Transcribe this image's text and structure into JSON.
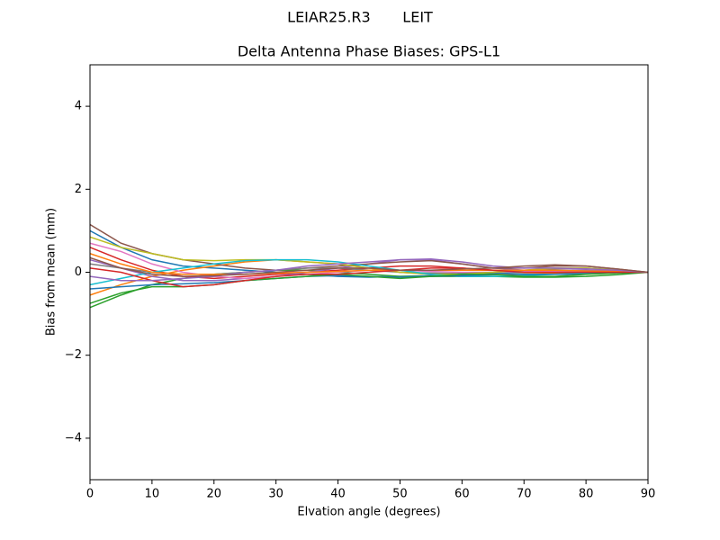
{
  "chart_data": {
    "type": "line",
    "suptitle": "LEIAR25.R3       LEIT",
    "title": "Delta Antenna Phase Biases: GPS-L1",
    "xlabel": "Elvation angle (degrees)",
    "ylabel": "Bias from mean (mm)",
    "xlim": [
      0,
      90
    ],
    "xticks": [
      0,
      10,
      20,
      30,
      40,
      50,
      60,
      70,
      80,
      90
    ],
    "ylim": [
      -5,
      5
    ],
    "yticks": [
      {
        "value": -4,
        "label": "−4"
      },
      {
        "value": -2,
        "label": "−2"
      },
      0,
      2,
      4
    ],
    "grid": false,
    "x": [
      0,
      5,
      10,
      15,
      20,
      25,
      30,
      35,
      40,
      45,
      50,
      55,
      60,
      65,
      70,
      75,
      80,
      85,
      90
    ],
    "series": [
      {
        "color": "#1f77b4",
        "values": [
          1.0,
          0.6,
          0.3,
          0.15,
          0.1,
          0.05,
          0.0,
          -0.05,
          -0.1,
          -0.12,
          -0.1,
          -0.08,
          -0.05,
          -0.03,
          0.0,
          0.02,
          0.03,
          0.02,
          0
        ]
      },
      {
        "color": "#ff7f0e",
        "values": [
          -0.55,
          -0.3,
          -0.1,
          0.05,
          0.15,
          0.25,
          0.3,
          0.25,
          0.2,
          0.1,
          0.0,
          -0.05,
          -0.08,
          -0.06,
          -0.04,
          -0.02,
          0.0,
          0.01,
          0
        ]
      },
      {
        "color": "#2ca02c",
        "values": [
          -0.85,
          -0.55,
          -0.3,
          -0.15,
          -0.05,
          0.0,
          0.05,
          0.05,
          0.0,
          -0.05,
          -0.1,
          -0.1,
          -0.1,
          -0.1,
          -0.12,
          -0.12,
          -0.1,
          -0.06,
          0
        ]
      },
      {
        "color": "#d62728",
        "values": [
          0.6,
          0.3,
          0.05,
          -0.1,
          -0.15,
          -0.1,
          -0.05,
          0.0,
          0.05,
          0.1,
          0.15,
          0.15,
          0.1,
          0.05,
          0.02,
          0.0,
          0.0,
          0.0,
          0
        ]
      },
      {
        "color": "#9467bd",
        "values": [
          0.3,
          0.1,
          -0.1,
          -0.2,
          -0.2,
          -0.15,
          -0.1,
          0.0,
          0.1,
          0.2,
          0.3,
          0.3,
          0.2,
          0.1,
          0.05,
          0.05,
          0.05,
          0.03,
          0
        ]
      },
      {
        "color": "#8c564b",
        "values": [
          1.15,
          0.7,
          0.45,
          0.3,
          0.2,
          0.1,
          0.05,
          0.1,
          0.15,
          0.2,
          0.25,
          0.28,
          0.2,
          0.1,
          0.1,
          0.15,
          0.15,
          0.08,
          0
        ]
      },
      {
        "color": "#e377c2",
        "values": [
          0.7,
          0.5,
          0.2,
          0.0,
          -0.1,
          -0.15,
          -0.1,
          -0.05,
          0.0,
          0.05,
          0.05,
          0.02,
          0.0,
          0.0,
          0.02,
          0.03,
          0.02,
          0.01,
          0
        ]
      },
      {
        "color": "#7f7f7f",
        "values": [
          0.2,
          0.1,
          0.0,
          -0.05,
          -0.05,
          0.0,
          0.05,
          0.1,
          0.1,
          0.05,
          0.0,
          -0.02,
          -0.03,
          0.0,
          0.05,
          0.08,
          0.1,
          0.06,
          0
        ]
      },
      {
        "color": "#bcbd22",
        "values": [
          0.85,
          0.6,
          0.45,
          0.3,
          0.28,
          0.3,
          0.3,
          0.25,
          0.2,
          0.1,
          0.0,
          -0.05,
          -0.05,
          0.0,
          0.05,
          0.1,
          0.1,
          0.05,
          0
        ]
      },
      {
        "color": "#17becf",
        "values": [
          -0.3,
          -0.15,
          0.0,
          0.1,
          0.2,
          0.28,
          0.3,
          0.3,
          0.25,
          0.15,
          0.05,
          -0.05,
          -0.1,
          -0.1,
          -0.08,
          -0.05,
          -0.02,
          0.0,
          0
        ]
      },
      {
        "color": "#1f77b4",
        "values": [
          -0.4,
          -0.35,
          -0.3,
          -0.28,
          -0.25,
          -0.2,
          -0.15,
          -0.1,
          -0.08,
          -0.1,
          -0.12,
          -0.1,
          -0.08,
          -0.06,
          -0.05,
          -0.05,
          -0.04,
          -0.02,
          0
        ]
      },
      {
        "color": "#ff7f0e",
        "values": [
          0.45,
          0.2,
          0.0,
          -0.05,
          -0.05,
          -0.05,
          -0.02,
          0.0,
          0.02,
          0.05,
          0.05,
          0.05,
          0.05,
          0.05,
          0.05,
          0.05,
          0.03,
          0.02,
          0
        ]
      },
      {
        "color": "#2ca02c",
        "values": [
          -0.75,
          -0.5,
          -0.35,
          -0.35,
          -0.3,
          -0.2,
          -0.15,
          -0.1,
          -0.05,
          -0.1,
          -0.15,
          -0.1,
          -0.05,
          -0.05,
          -0.1,
          -0.1,
          -0.05,
          -0.02,
          0
        ]
      },
      {
        "color": "#d62728",
        "values": [
          0.1,
          0.0,
          -0.2,
          -0.35,
          -0.3,
          -0.2,
          -0.1,
          -0.05,
          -0.05,
          0.0,
          0.05,
          0.1,
          0.1,
          0.05,
          0.0,
          0.0,
          0.0,
          0.0,
          0
        ]
      },
      {
        "color": "#9467bd",
        "values": [
          -0.1,
          -0.2,
          -0.2,
          -0.15,
          -0.1,
          0.0,
          0.05,
          0.15,
          0.2,
          0.25,
          0.3,
          0.32,
          0.25,
          0.15,
          0.1,
          0.1,
          0.08,
          0.05,
          0
        ]
      },
      {
        "color": "#8c564b",
        "values": [
          0.35,
          0.1,
          -0.05,
          -0.1,
          -0.08,
          -0.05,
          0.0,
          0.05,
          0.1,
          0.1,
          0.05,
          0.05,
          0.08,
          0.1,
          0.15,
          0.18,
          0.15,
          0.08,
          0
        ]
      }
    ]
  }
}
